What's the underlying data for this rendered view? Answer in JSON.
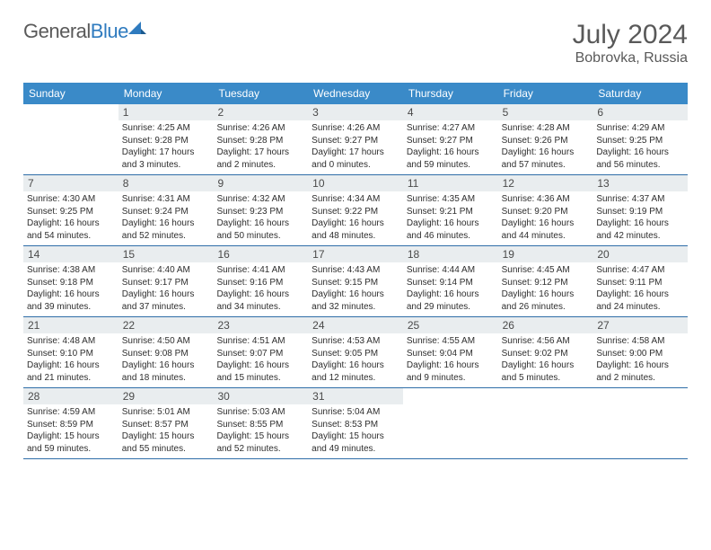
{
  "logo": {
    "text1": "General",
    "text2": "Blue"
  },
  "title": "July 2024",
  "location": "Bobrovka, Russia",
  "header_bg": "#3a8ac8",
  "daynum_bg": "#e9edef",
  "border_color": "#2f6ea8",
  "weekdays": [
    "Sunday",
    "Monday",
    "Tuesday",
    "Wednesday",
    "Thursday",
    "Friday",
    "Saturday"
  ],
  "weeks": [
    [
      {
        "n": "",
        "lines": []
      },
      {
        "n": "1",
        "lines": [
          "Sunrise: 4:25 AM",
          "Sunset: 9:28 PM",
          "Daylight: 17 hours",
          "and 3 minutes."
        ]
      },
      {
        "n": "2",
        "lines": [
          "Sunrise: 4:26 AM",
          "Sunset: 9:28 PM",
          "Daylight: 17 hours",
          "and 2 minutes."
        ]
      },
      {
        "n": "3",
        "lines": [
          "Sunrise: 4:26 AM",
          "Sunset: 9:27 PM",
          "Daylight: 17 hours",
          "and 0 minutes."
        ]
      },
      {
        "n": "4",
        "lines": [
          "Sunrise: 4:27 AM",
          "Sunset: 9:27 PM",
          "Daylight: 16 hours",
          "and 59 minutes."
        ]
      },
      {
        "n": "5",
        "lines": [
          "Sunrise: 4:28 AM",
          "Sunset: 9:26 PM",
          "Daylight: 16 hours",
          "and 57 minutes."
        ]
      },
      {
        "n": "6",
        "lines": [
          "Sunrise: 4:29 AM",
          "Sunset: 9:25 PM",
          "Daylight: 16 hours",
          "and 56 minutes."
        ]
      }
    ],
    [
      {
        "n": "7",
        "lines": [
          "Sunrise: 4:30 AM",
          "Sunset: 9:25 PM",
          "Daylight: 16 hours",
          "and 54 minutes."
        ]
      },
      {
        "n": "8",
        "lines": [
          "Sunrise: 4:31 AM",
          "Sunset: 9:24 PM",
          "Daylight: 16 hours",
          "and 52 minutes."
        ]
      },
      {
        "n": "9",
        "lines": [
          "Sunrise: 4:32 AM",
          "Sunset: 9:23 PM",
          "Daylight: 16 hours",
          "and 50 minutes."
        ]
      },
      {
        "n": "10",
        "lines": [
          "Sunrise: 4:34 AM",
          "Sunset: 9:22 PM",
          "Daylight: 16 hours",
          "and 48 minutes."
        ]
      },
      {
        "n": "11",
        "lines": [
          "Sunrise: 4:35 AM",
          "Sunset: 9:21 PM",
          "Daylight: 16 hours",
          "and 46 minutes."
        ]
      },
      {
        "n": "12",
        "lines": [
          "Sunrise: 4:36 AM",
          "Sunset: 9:20 PM",
          "Daylight: 16 hours",
          "and 44 minutes."
        ]
      },
      {
        "n": "13",
        "lines": [
          "Sunrise: 4:37 AM",
          "Sunset: 9:19 PM",
          "Daylight: 16 hours",
          "and 42 minutes."
        ]
      }
    ],
    [
      {
        "n": "14",
        "lines": [
          "Sunrise: 4:38 AM",
          "Sunset: 9:18 PM",
          "Daylight: 16 hours",
          "and 39 minutes."
        ]
      },
      {
        "n": "15",
        "lines": [
          "Sunrise: 4:40 AM",
          "Sunset: 9:17 PM",
          "Daylight: 16 hours",
          "and 37 minutes."
        ]
      },
      {
        "n": "16",
        "lines": [
          "Sunrise: 4:41 AM",
          "Sunset: 9:16 PM",
          "Daylight: 16 hours",
          "and 34 minutes."
        ]
      },
      {
        "n": "17",
        "lines": [
          "Sunrise: 4:43 AM",
          "Sunset: 9:15 PM",
          "Daylight: 16 hours",
          "and 32 minutes."
        ]
      },
      {
        "n": "18",
        "lines": [
          "Sunrise: 4:44 AM",
          "Sunset: 9:14 PM",
          "Daylight: 16 hours",
          "and 29 minutes."
        ]
      },
      {
        "n": "19",
        "lines": [
          "Sunrise: 4:45 AM",
          "Sunset: 9:12 PM",
          "Daylight: 16 hours",
          "and 26 minutes."
        ]
      },
      {
        "n": "20",
        "lines": [
          "Sunrise: 4:47 AM",
          "Sunset: 9:11 PM",
          "Daylight: 16 hours",
          "and 24 minutes."
        ]
      }
    ],
    [
      {
        "n": "21",
        "lines": [
          "Sunrise: 4:48 AM",
          "Sunset: 9:10 PM",
          "Daylight: 16 hours",
          "and 21 minutes."
        ]
      },
      {
        "n": "22",
        "lines": [
          "Sunrise: 4:50 AM",
          "Sunset: 9:08 PM",
          "Daylight: 16 hours",
          "and 18 minutes."
        ]
      },
      {
        "n": "23",
        "lines": [
          "Sunrise: 4:51 AM",
          "Sunset: 9:07 PM",
          "Daylight: 16 hours",
          "and 15 minutes."
        ]
      },
      {
        "n": "24",
        "lines": [
          "Sunrise: 4:53 AM",
          "Sunset: 9:05 PM",
          "Daylight: 16 hours",
          "and 12 minutes."
        ]
      },
      {
        "n": "25",
        "lines": [
          "Sunrise: 4:55 AM",
          "Sunset: 9:04 PM",
          "Daylight: 16 hours",
          "and 9 minutes."
        ]
      },
      {
        "n": "26",
        "lines": [
          "Sunrise: 4:56 AM",
          "Sunset: 9:02 PM",
          "Daylight: 16 hours",
          "and 5 minutes."
        ]
      },
      {
        "n": "27",
        "lines": [
          "Sunrise: 4:58 AM",
          "Sunset: 9:00 PM",
          "Daylight: 16 hours",
          "and 2 minutes."
        ]
      }
    ],
    [
      {
        "n": "28",
        "lines": [
          "Sunrise: 4:59 AM",
          "Sunset: 8:59 PM",
          "Daylight: 15 hours",
          "and 59 minutes."
        ]
      },
      {
        "n": "29",
        "lines": [
          "Sunrise: 5:01 AM",
          "Sunset: 8:57 PM",
          "Daylight: 15 hours",
          "and 55 minutes."
        ]
      },
      {
        "n": "30",
        "lines": [
          "Sunrise: 5:03 AM",
          "Sunset: 8:55 PM",
          "Daylight: 15 hours",
          "and 52 minutes."
        ]
      },
      {
        "n": "31",
        "lines": [
          "Sunrise: 5:04 AM",
          "Sunset: 8:53 PM",
          "Daylight: 15 hours",
          "and 49 minutes."
        ]
      },
      {
        "n": "",
        "lines": []
      },
      {
        "n": "",
        "lines": []
      },
      {
        "n": "",
        "lines": []
      }
    ]
  ]
}
